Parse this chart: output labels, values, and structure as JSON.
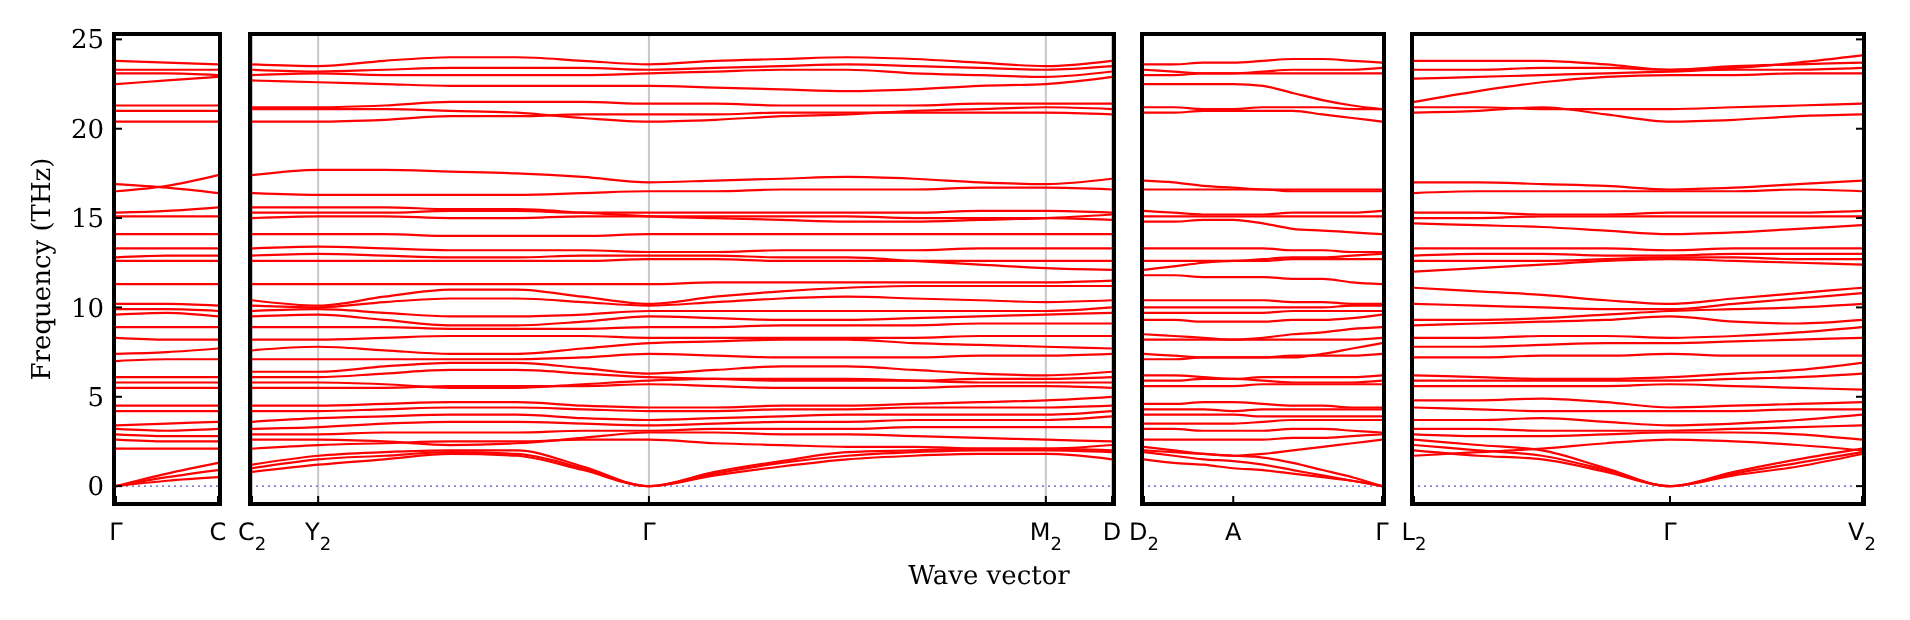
{
  "chart_data": [
    {
      "type": "line",
      "ylabel": "Frequency (THz)",
      "color": "#ff0000",
      "categories": [
        "Γ",
        null,
        "C"
      ],
      "ylim": [
        -1,
        25.3
      ],
      "yticks": [
        0,
        5,
        10,
        15,
        20,
        25
      ],
      "marker": "none",
      "line_style": "solid",
      "ref_lines": [
        {
          "axis": "y",
          "value": 0,
          "color": "#8080e0",
          "line_style": "dotted"
        }
      ],
      "series": [
        {
          "values": [
            0,
            0.3,
            0.5
          ]
        },
        {
          "values": [
            0,
            0.5,
            0.9
          ]
        },
        {
          "values": [
            0,
            0.7,
            1.3
          ]
        },
        {
          "values": [
            2.1,
            2.1,
            2.1
          ]
        },
        {
          "values": [
            2.6,
            2.5,
            2.5
          ]
        },
        {
          "values": [
            2.9,
            2.8,
            2.8
          ]
        },
        {
          "values": [
            3.2,
            3.1,
            3.2
          ]
        },
        {
          "values": [
            3.4,
            3.5,
            3.6
          ]
        },
        {
          "values": [
            4.2,
            4.2,
            4.2
          ]
        },
        {
          "values": [
            4.5,
            4.5,
            4.5
          ]
        },
        {
          "values": [
            5.5,
            5.5,
            5.5
          ]
        },
        {
          "values": [
            5.8,
            5.8,
            5.8
          ]
        },
        {
          "values": [
            6.1,
            6.1,
            6.1
          ]
        },
        {
          "values": [
            7.0,
            7.1,
            7.1
          ]
        },
        {
          "values": [
            7.4,
            7.5,
            7.7
          ]
        },
        {
          "values": [
            8.3,
            8.2,
            8.2
          ]
        },
        {
          "values": [
            8.9,
            8.9,
            8.9
          ]
        },
        {
          "values": [
            9.6,
            9.7,
            9.5
          ]
        },
        {
          "values": [
            9.9,
            9.9,
            9.8
          ]
        },
        {
          "values": [
            10.2,
            10.2,
            10.1
          ]
        },
        {
          "values": [
            11.3,
            11.3,
            11.3
          ]
        },
        {
          "values": [
            12.6,
            12.6,
            12.6
          ]
        },
        {
          "values": [
            12.8,
            12.9,
            12.9
          ]
        },
        {
          "values": [
            13.3,
            13.3,
            13.3
          ]
        },
        {
          "values": [
            14.1,
            14.1,
            14.1
          ]
        },
        {
          "values": [
            15.1,
            15.1,
            15.1
          ]
        },
        {
          "values": [
            15.3,
            15.4,
            15.6
          ]
        },
        {
          "values": [
            16.5,
            16.8,
            17.4
          ]
        },
        {
          "values": [
            16.9,
            16.7,
            16.4
          ]
        },
        {
          "values": [
            20.4,
            20.4,
            20.4
          ]
        },
        {
          "values": [
            21.0,
            21.0,
            21.0
          ]
        },
        {
          "values": [
            21.3,
            21.3,
            21.3
          ]
        },
        {
          "values": [
            22.5,
            22.7,
            22.9
          ]
        },
        {
          "values": [
            23.1,
            23.1,
            23.0
          ]
        },
        {
          "values": [
            23.3,
            23.3,
            23.3
          ]
        },
        {
          "values": [
            23.8,
            23.7,
            23.6
          ]
        }
      ]
    },
    {
      "type": "line",
      "xlabel": "Wave vector",
      "color": "#ff0000",
      "categories": [
        "C$_{2}$",
        "Y$_{2}$",
        null,
        null,
        null,
        null,
        "Γ",
        null,
        null,
        null,
        null,
        null,
        "M$_{2}$",
        "D"
      ],
      "ylim": [
        -1,
        25.3
      ],
      "yticks": [
        0,
        5,
        10,
        15,
        20,
        25
      ],
      "grid": "x",
      "marker": "none",
      "line_style": "solid",
      "tick_labels": "x",
      "ref_lines": [
        {
          "axis": "y",
          "value": 0,
          "color": "#8080e0",
          "line_style": "dotted"
        }
      ],
      "series": [
        {
          "values": [
            0.8,
            1.2,
            1.5,
            1.8,
            1.7,
            0.9,
            0,
            0.6,
            1.1,
            1.5,
            1.7,
            1.8,
            1.8,
            1.5
          ]
        },
        {
          "values": [
            1.0,
            1.5,
            1.7,
            1.9,
            1.8,
            1.0,
            0,
            0.7,
            1.3,
            1.7,
            1.9,
            2.0,
            2.0,
            1.9
          ]
        },
        {
          "values": [
            1.2,
            1.7,
            1.9,
            2.0,
            2.0,
            1.1,
            0,
            0.8,
            1.4,
            1.9,
            2.0,
            2.1,
            2.1,
            2.3
          ]
        },
        {
          "values": [
            2.1,
            2.3,
            2.4,
            2.5,
            2.5,
            2.6,
            2.6,
            2.4,
            2.3,
            2.2,
            2.2,
            2.1,
            2.1,
            2.0
          ]
        },
        {
          "values": [
            2.6,
            2.6,
            2.5,
            2.3,
            2.4,
            2.7,
            3.0,
            3.0,
            2.9,
            2.9,
            2.8,
            2.7,
            2.6,
            2.5
          ]
        },
        {
          "values": [
            2.9,
            2.9,
            3.0,
            3.0,
            3.0,
            3.1,
            3.1,
            3.2,
            3.2,
            3.2,
            3.3,
            3.3,
            3.3,
            3.3
          ]
        },
        {
          "values": [
            3.2,
            3.3,
            3.5,
            3.6,
            3.6,
            3.5,
            3.4,
            3.5,
            3.6,
            3.6,
            3.7,
            3.7,
            3.7,
            3.9
          ]
        },
        {
          "values": [
            3.6,
            3.8,
            3.9,
            4.0,
            4.0,
            3.8,
            3.7,
            3.8,
            3.9,
            4.0,
            4.0,
            4.0,
            4.0,
            4.2
          ]
        },
        {
          "values": [
            4.2,
            4.2,
            4.3,
            4.4,
            4.4,
            4.3,
            4.2,
            4.2,
            4.3,
            4.3,
            4.4,
            4.4,
            4.4,
            4.5
          ]
        },
        {
          "values": [
            4.5,
            4.5,
            4.6,
            4.7,
            4.7,
            4.5,
            4.4,
            4.4,
            4.5,
            4.5,
            4.6,
            4.7,
            4.8,
            5.0
          ]
        },
        {
          "values": [
            5.5,
            5.5,
            5.5,
            5.6,
            5.6,
            5.6,
            5.7,
            5.6,
            5.5,
            5.5,
            5.5,
            5.6,
            5.6,
            5.5
          ]
        },
        {
          "values": [
            5.8,
            5.8,
            5.7,
            5.5,
            5.5,
            5.7,
            5.9,
            6.0,
            6.0,
            6.0,
            5.9,
            5.8,
            5.8,
            5.8
          ]
        },
        {
          "values": [
            6.1,
            6.1,
            6.3,
            6.5,
            6.5,
            6.3,
            6.1,
            6.0,
            5.9,
            5.9,
            5.9,
            6.0,
            6.0,
            6.1
          ]
        },
        {
          "values": [
            6.4,
            6.4,
            6.7,
            6.9,
            6.9,
            6.6,
            6.3,
            6.5,
            6.7,
            6.7,
            6.5,
            6.3,
            6.2,
            6.4
          ]
        },
        {
          "values": [
            7.1,
            7.1,
            7.1,
            7.1,
            7.1,
            7.2,
            7.4,
            7.3,
            7.2,
            7.2,
            7.2,
            7.3,
            7.3,
            7.4
          ]
        },
        {
          "values": [
            7.6,
            7.8,
            7.6,
            7.4,
            7.4,
            7.7,
            8.0,
            8.1,
            8.2,
            8.2,
            8.0,
            7.9,
            7.8,
            7.7
          ]
        },
        {
          "values": [
            8.2,
            8.2,
            8.3,
            8.4,
            8.4,
            8.4,
            8.3,
            8.3,
            8.3,
            8.3,
            8.3,
            8.4,
            8.4,
            8.4
          ]
        },
        {
          "values": [
            8.9,
            8.9,
            8.9,
            8.8,
            8.8,
            8.8,
            8.9,
            8.9,
            9.0,
            9.0,
            9.0,
            9.1,
            9.1,
            9.1
          ]
        },
        {
          "values": [
            9.5,
            9.6,
            9.3,
            9.0,
            9.0,
            9.2,
            9.5,
            9.4,
            9.3,
            9.3,
            9.4,
            9.5,
            9.6,
            9.7
          ]
        },
        {
          "values": [
            9.8,
            9.9,
            9.7,
            9.5,
            9.5,
            9.6,
            9.8,
            9.8,
            9.8,
            9.8,
            9.8,
            9.8,
            9.8,
            10.0
          ]
        },
        {
          "values": [
            10.1,
            10.0,
            10.3,
            10.5,
            10.5,
            10.3,
            10.1,
            10.3,
            10.5,
            10.6,
            10.5,
            10.4,
            10.3,
            10.4
          ]
        },
        {
          "values": [
            10.4,
            10.1,
            10.6,
            11.0,
            11.0,
            10.6,
            10.2,
            10.6,
            10.9,
            11.1,
            11.2,
            11.2,
            11.2,
            11.2
          ]
        },
        {
          "values": [
            11.3,
            11.3,
            11.3,
            11.3,
            11.3,
            11.3,
            11.3,
            11.4,
            11.4,
            11.4,
            11.4,
            11.4,
            11.4,
            11.5
          ]
        },
        {
          "values": [
            12.6,
            12.6,
            12.6,
            12.6,
            12.6,
            12.6,
            12.7,
            12.7,
            12.6,
            12.6,
            12.6,
            12.6,
            12.6,
            12.6
          ]
        },
        {
          "values": [
            12.9,
            13.0,
            12.9,
            12.8,
            12.8,
            12.9,
            12.9,
            12.9,
            12.8,
            12.8,
            12.6,
            12.4,
            12.2,
            12.1
          ]
        },
        {
          "values": [
            13.3,
            13.4,
            13.3,
            13.2,
            13.2,
            13.2,
            13.1,
            13.1,
            13.2,
            13.2,
            13.2,
            13.3,
            13.3,
            13.3
          ]
        },
        {
          "values": [
            14.1,
            14.1,
            14.1,
            14.0,
            14.0,
            14.0,
            14.1,
            14.1,
            14.1,
            14.1,
            14.1,
            14.1,
            14.1,
            14.1
          ]
        },
        {
          "values": [
            15.0,
            15.1,
            15.1,
            15.0,
            15.0,
            15.1,
            15.1,
            15.1,
            15.1,
            15.1,
            15.0,
            15.0,
            15.0,
            14.9
          ]
        },
        {
          "values": [
            15.3,
            15.3,
            15.3,
            15.4,
            15.4,
            15.3,
            15.3,
            15.3,
            15.3,
            15.3,
            15.3,
            15.4,
            15.4,
            15.3
          ]
        },
        {
          "values": [
            15.6,
            15.6,
            15.6,
            15.5,
            15.5,
            15.3,
            15.1,
            15.0,
            14.9,
            14.8,
            14.8,
            14.9,
            15.0,
            15.2
          ]
        },
        {
          "values": [
            16.4,
            16.3,
            16.3,
            16.3,
            16.3,
            16.4,
            16.5,
            16.5,
            16.6,
            16.6,
            16.6,
            16.7,
            16.7,
            16.6
          ]
        },
        {
          "values": [
            17.4,
            17.7,
            17.7,
            17.6,
            17.5,
            17.3,
            17.0,
            17.1,
            17.2,
            17.3,
            17.2,
            17.0,
            16.9,
            17.2
          ]
        },
        {
          "values": [
            20.4,
            20.4,
            20.5,
            20.7,
            20.7,
            20.8,
            20.8,
            20.8,
            20.9,
            20.9,
            20.9,
            20.9,
            20.9,
            20.8
          ]
        },
        {
          "values": [
            21.1,
            21.1,
            21.1,
            21.0,
            20.9,
            20.6,
            20.4,
            20.5,
            20.7,
            20.8,
            21.0,
            21.1,
            21.2,
            21.1
          ]
        },
        {
          "values": [
            21.2,
            21.2,
            21.3,
            21.5,
            21.5,
            21.5,
            21.4,
            21.4,
            21.3,
            21.3,
            21.3,
            21.4,
            21.4,
            21.4
          ]
        },
        {
          "values": [
            22.7,
            22.6,
            22.5,
            22.4,
            22.4,
            22.4,
            22.4,
            22.3,
            22.2,
            22.1,
            22.2,
            22.4,
            22.5,
            22.9
          ]
        },
        {
          "values": [
            23.0,
            23.1,
            23.0,
            23.0,
            23.0,
            23.0,
            23.1,
            23.2,
            23.3,
            23.3,
            23.1,
            23.0,
            22.9,
            23.2
          ]
        },
        {
          "values": [
            23.3,
            23.2,
            23.3,
            23.4,
            23.4,
            23.4,
            23.3,
            23.4,
            23.5,
            23.6,
            23.5,
            23.4,
            23.3,
            23.5
          ]
        },
        {
          "values": [
            23.6,
            23.5,
            23.8,
            24.0,
            24.0,
            23.8,
            23.6,
            23.8,
            23.9,
            24.0,
            23.9,
            23.7,
            23.5,
            23.8
          ]
        }
      ]
    },
    {
      "type": "line",
      "color": "#ff0000",
      "categories": [
        "D$_{2}$",
        null,
        null,
        "A",
        null,
        null,
        null,
        null,
        "Γ"
      ],
      "ylim": [
        -1,
        25.3
      ],
      "yticks": [
        0,
        5,
        10,
        15,
        20,
        25
      ],
      "marker": "none",
      "line_style": "solid",
      "tick_labels": "x",
      "ref_lines": [
        {
          "axis": "y",
          "value": 0,
          "color": "#8080e0",
          "line_style": "dotted"
        }
      ],
      "series": [
        {
          "values": [
            1.5,
            1.3,
            1.2,
            1.0,
            0.9,
            0.7,
            0.5,
            0.3,
            0
          ]
        },
        {
          "values": [
            1.9,
            1.7,
            1.5,
            1.4,
            1.2,
            0.9,
            0.6,
            0.3,
            0
          ]
        },
        {
          "values": [
            2.2,
            2.0,
            1.8,
            1.7,
            1.6,
            1.3,
            0.9,
            0.5,
            0
          ]
        },
        {
          "values": [
            2.0,
            1.9,
            1.8,
            1.7,
            1.8,
            2.0,
            2.2,
            2.4,
            2.6
          ]
        },
        {
          "values": [
            2.6,
            2.6,
            2.6,
            2.6,
            2.6,
            2.7,
            2.7,
            2.8,
            2.9
          ]
        },
        {
          "values": [
            3.2,
            3.2,
            3.1,
            3.1,
            3.1,
            3.2,
            3.2,
            3.1,
            3.0
          ]
        },
        {
          "values": [
            3.5,
            3.5,
            3.5,
            3.5,
            3.6,
            3.7,
            3.7,
            3.7,
            3.7
          ]
        },
        {
          "values": [
            4.0,
            4.0,
            4.0,
            4.0,
            3.9,
            3.9,
            3.9,
            3.9,
            3.9
          ]
        },
        {
          "values": [
            4.3,
            4.3,
            4.3,
            4.2,
            4.3,
            4.3,
            4.3,
            4.3,
            4.3
          ]
        },
        {
          "values": [
            4.6,
            4.6,
            4.7,
            4.7,
            4.6,
            4.5,
            4.5,
            4.4,
            4.4
          ]
        },
        {
          "values": [
            5.6,
            5.6,
            5.6,
            5.6,
            5.7,
            5.7,
            5.7,
            5.7,
            5.7
          ]
        },
        {
          "values": [
            5.9,
            5.9,
            6.0,
            6.0,
            5.9,
            5.8,
            5.8,
            5.8,
            5.9
          ]
        },
        {
          "values": [
            6.2,
            6.2,
            6.1,
            6.0,
            6.1,
            6.1,
            6.1,
            6.1,
            6.2
          ]
        },
        {
          "values": [
            7.1,
            7.1,
            7.2,
            7.2,
            7.2,
            7.3,
            7.3,
            7.3,
            7.4
          ]
        },
        {
          "values": [
            7.4,
            7.3,
            7.2,
            7.2,
            7.2,
            7.2,
            7.4,
            7.7,
            8.0
          ]
        },
        {
          "values": [
            8.2,
            8.2,
            8.2,
            8.2,
            8.2,
            8.2,
            8.2,
            8.2,
            8.3
          ]
        },
        {
          "values": [
            8.5,
            8.4,
            8.3,
            8.2,
            8.3,
            8.5,
            8.6,
            8.8,
            8.9
          ]
        },
        {
          "values": [
            9.3,
            9.3,
            9.2,
            9.2,
            9.2,
            9.3,
            9.3,
            9.4,
            9.6
          ]
        },
        {
          "values": [
            9.7,
            9.7,
            9.7,
            9.7,
            9.7,
            9.8,
            9.8,
            9.8,
            9.8
          ]
        },
        {
          "values": [
            10.0,
            10.0,
            10.0,
            10.0,
            10.0,
            10.0,
            10.0,
            10.1,
            10.1
          ]
        },
        {
          "values": [
            10.4,
            10.4,
            10.4,
            10.4,
            10.4,
            10.3,
            10.3,
            10.2,
            10.2
          ]
        },
        {
          "values": [
            11.8,
            11.8,
            11.7,
            11.7,
            11.7,
            11.6,
            11.6,
            11.4,
            11.3
          ]
        },
        {
          "values": [
            12.1,
            12.3,
            12.5,
            12.6,
            12.6,
            12.7,
            12.7,
            12.7,
            12.7
          ]
        },
        {
          "values": [
            12.6,
            12.6,
            12.6,
            12.6,
            12.7,
            12.8,
            12.8,
            12.9,
            13.0
          ]
        },
        {
          "values": [
            13.3,
            13.3,
            13.3,
            13.3,
            13.3,
            13.2,
            13.2,
            13.1,
            13.1
          ]
        },
        {
          "values": [
            14.8,
            14.8,
            14.9,
            14.9,
            14.7,
            14.4,
            14.3,
            14.2,
            14.1
          ]
        },
        {
          "values": [
            15.1,
            15.1,
            15.1,
            15.1,
            15.1,
            15.1,
            15.1,
            15.1,
            15.1
          ]
        },
        {
          "values": [
            15.4,
            15.3,
            15.2,
            15.2,
            15.2,
            15.3,
            15.3,
            15.3,
            15.4
          ]
        },
        {
          "values": [
            16.6,
            16.6,
            16.6,
            16.6,
            16.6,
            16.5,
            16.5,
            16.5,
            16.5
          ]
        },
        {
          "values": [
            17.1,
            17.0,
            16.8,
            16.7,
            16.6,
            16.6,
            16.6,
            16.6,
            16.6
          ]
        },
        {
          "values": [
            20.9,
            20.9,
            21.0,
            21.0,
            21.0,
            21.0,
            20.8,
            20.6,
            20.4
          ]
        },
        {
          "values": [
            21.2,
            21.2,
            21.1,
            21.1,
            21.2,
            21.2,
            21.2,
            21.1,
            21.1
          ]
        },
        {
          "values": [
            22.5,
            22.5,
            22.5,
            22.5,
            22.4,
            22.0,
            21.6,
            21.3,
            21.1
          ]
        },
        {
          "values": [
            23.0,
            23.0,
            23.1,
            23.1,
            23.1,
            23.1,
            23.1,
            23.1,
            23.1
          ]
        },
        {
          "values": [
            23.3,
            23.2,
            23.1,
            23.1,
            23.2,
            23.3,
            23.3,
            23.3,
            23.4
          ]
        },
        {
          "values": [
            23.6,
            23.6,
            23.7,
            23.7,
            23.8,
            23.9,
            23.9,
            23.8,
            23.7
          ]
        }
      ]
    },
    {
      "type": "line",
      "color": "#ff0000",
      "categories": [
        "L$_{2}$",
        null,
        null,
        null,
        "Γ",
        null,
        null,
        "V$_{2}$"
      ],
      "ylim": [
        -1,
        25.3
      ],
      "yticks": [
        0,
        5,
        10,
        15,
        20,
        25
      ],
      "marker": "none",
      "line_style": "solid",
      "tick_labels": "x",
      "ref_lines": [
        {
          "axis": "y",
          "value": 0,
          "color": "#8080e0",
          "line_style": "dotted"
        }
      ],
      "series": [
        {
          "values": [
            2.0,
            1.7,
            1.5,
            0.8,
            0,
            0.6,
            1.1,
            1.8
          ]
        },
        {
          "values": [
            2.3,
            2.0,
            1.7,
            0.9,
            0,
            0.7,
            1.3,
            1.9
          ]
        },
        {
          "values": [
            2.6,
            2.3,
            2.0,
            1.0,
            0,
            0.8,
            1.5,
            2.1
          ]
        },
        {
          "values": [
            1.7,
            1.9,
            2.1,
            2.4,
            2.6,
            2.5,
            2.3,
            2.0
          ]
        },
        {
          "values": [
            2.9,
            2.8,
            2.8,
            2.9,
            3.0,
            3.0,
            2.9,
            2.6
          ]
        },
        {
          "values": [
            3.2,
            3.2,
            3.1,
            3.1,
            3.1,
            3.2,
            3.3,
            3.4
          ]
        },
        {
          "values": [
            3.7,
            3.7,
            3.8,
            3.6,
            3.4,
            3.5,
            3.7,
            4.0
          ]
        },
        {
          "values": [
            4.4,
            4.3,
            4.2,
            4.2,
            4.2,
            4.2,
            4.3,
            4.3
          ]
        },
        {
          "values": [
            4.8,
            4.8,
            4.9,
            4.7,
            4.4,
            4.5,
            4.6,
            4.7
          ]
        },
        {
          "values": [
            5.6,
            5.6,
            5.6,
            5.6,
            5.7,
            5.6,
            5.5,
            5.4
          ]
        },
        {
          "values": [
            5.9,
            5.9,
            5.9,
            5.9,
            5.9,
            6.0,
            6.1,
            6.3
          ]
        },
        {
          "values": [
            6.2,
            6.1,
            6.0,
            6.0,
            6.1,
            6.3,
            6.5,
            6.9
          ]
        },
        {
          "values": [
            7.2,
            7.2,
            7.3,
            7.3,
            7.4,
            7.3,
            7.3,
            7.3
          ]
        },
        {
          "values": [
            7.8,
            7.8,
            7.9,
            8.0,
            8.0,
            8.1,
            8.2,
            8.3
          ]
        },
        {
          "values": [
            8.3,
            8.3,
            8.4,
            8.4,
            8.3,
            8.4,
            8.6,
            8.9
          ]
        },
        {
          "values": [
            9.0,
            9.1,
            9.2,
            9.3,
            9.5,
            9.2,
            9.1,
            9.3
          ]
        },
        {
          "values": [
            9.3,
            9.3,
            9.4,
            9.6,
            9.8,
            9.9,
            10.0,
            10.2
          ]
        },
        {
          "values": [
            10.2,
            10.1,
            10.0,
            9.9,
            9.9,
            10.2,
            10.5,
            10.8
          ]
        },
        {
          "values": [
            11.1,
            10.9,
            10.7,
            10.4,
            10.2,
            10.5,
            10.8,
            11.1
          ]
        },
        {
          "values": [
            12.0,
            12.2,
            12.4,
            12.6,
            12.7,
            12.6,
            12.5,
            12.4
          ]
        },
        {
          "values": [
            12.6,
            12.6,
            12.6,
            12.7,
            12.8,
            12.8,
            12.7,
            12.7
          ]
        },
        {
          "values": [
            12.9,
            13.0,
            13.0,
            12.9,
            12.9,
            13.0,
            13.0,
            13.0
          ]
        },
        {
          "values": [
            13.3,
            13.3,
            13.3,
            13.3,
            13.2,
            13.3,
            13.3,
            13.3
          ]
        },
        {
          "values": [
            14.7,
            14.6,
            14.5,
            14.3,
            14.1,
            14.2,
            14.4,
            14.6
          ]
        },
        {
          "values": [
            15.0,
            15.0,
            15.1,
            15.1,
            15.1,
            15.1,
            15.1,
            15.1
          ]
        },
        {
          "values": [
            15.3,
            15.3,
            15.2,
            15.2,
            15.3,
            15.3,
            15.3,
            15.4
          ]
        },
        {
          "values": [
            16.4,
            16.5,
            16.5,
            16.5,
            16.5,
            16.5,
            16.6,
            16.5
          ]
        },
        {
          "values": [
            17.0,
            17.0,
            16.9,
            16.8,
            16.6,
            16.7,
            16.9,
            17.1
          ]
        },
        {
          "values": [
            20.9,
            21.0,
            21.2,
            20.8,
            20.4,
            20.5,
            20.7,
            20.8
          ]
        },
        {
          "values": [
            21.2,
            21.2,
            21.1,
            21.1,
            21.1,
            21.2,
            21.3,
            21.4
          ]
        },
        {
          "values": [
            21.5,
            22.1,
            22.6,
            22.9,
            23.0,
            23.0,
            23.1,
            23.1
          ]
        },
        {
          "values": [
            22.8,
            22.9,
            23.0,
            23.1,
            23.2,
            23.3,
            23.3,
            23.4
          ]
        },
        {
          "values": [
            23.3,
            23.3,
            23.4,
            23.4,
            23.3,
            23.5,
            23.6,
            23.7
          ]
        },
        {
          "values": [
            23.8,
            23.8,
            23.8,
            23.6,
            23.3,
            23.4,
            23.7,
            24.1
          ]
        }
      ]
    }
  ]
}
